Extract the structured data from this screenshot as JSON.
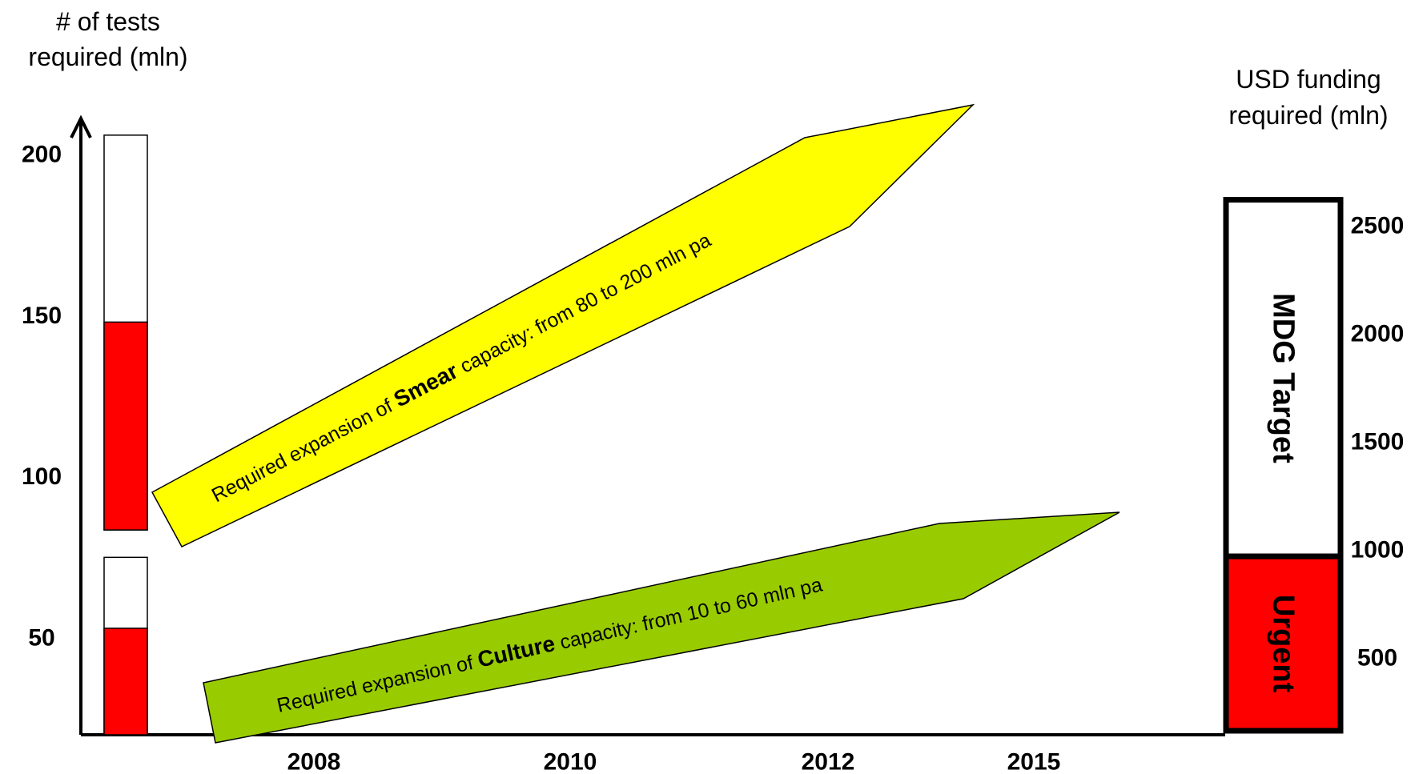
{
  "chart_data": {
    "type": "bar",
    "left_axis": {
      "title_line1": "# of tests",
      "title_line2": "required (mln)",
      "ticks": [
        50,
        100,
        150,
        200
      ],
      "ylim": [
        20,
        210
      ]
    },
    "right_axis": {
      "title_line1": "USD funding",
      "title_line2": "required (mln)",
      "ticks": [
        500,
        1000,
        1500,
        2000,
        2500
      ],
      "ylim": [
        120,
        2620
      ]
    },
    "x_axis": {
      "labels": [
        "2008",
        "2010",
        "2012",
        "2015"
      ]
    },
    "left_bars": [
      {
        "name": "Smear",
        "current": 148,
        "target": 206
      },
      {
        "name": "Culture",
        "current": 53,
        "target": 75
      }
    ],
    "right_bar": {
      "segments": [
        {
          "label": "Urgent",
          "value": 820,
          "color": "#ff0000"
        },
        {
          "label": "MDG Target",
          "value": 2470,
          "color": "#ffffff"
        }
      ]
    },
    "arrows": [
      {
        "id": "smear",
        "text_prefix": "Required expansion of ",
        "text_bold": "Smear",
        "text_suffix": " capacity: from 80 to 200 mln pa",
        "color": "#ffff00"
      },
      {
        "id": "culture",
        "text_prefix": "Required expansion of ",
        "text_bold": "Culture",
        "text_suffix": " capacity: from 10 to 60 mln pa",
        "color": "#99cc00"
      }
    ],
    "colors": {
      "fill": "#ff0000",
      "axis": "#000000"
    }
  }
}
